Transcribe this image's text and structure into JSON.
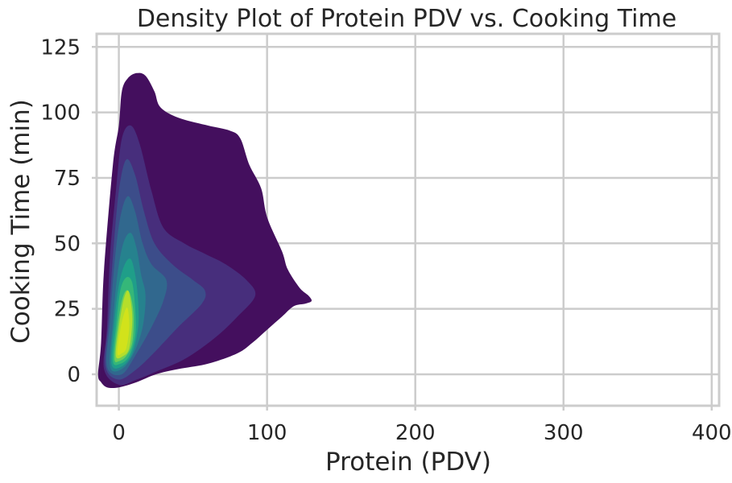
{
  "chart_data": {
    "type": "kde-density-contour",
    "title": "Density Plot of Protein PDV vs. Cooking Time",
    "xlabel": "Protein (PDV)",
    "ylabel": "Cooking Time (min)",
    "xlim": [
      -15,
      405
    ],
    "ylim": [
      -12,
      130
    ],
    "xticks": [
      0,
      100,
      200,
      300,
      400
    ],
    "yticks": [
      0,
      25,
      50,
      75,
      100,
      125
    ],
    "xtick_labels": [
      "0",
      "100",
      "200",
      "300",
      "400"
    ],
    "ytick_labels": [
      "0",
      "25",
      "50",
      "75",
      "100",
      "125"
    ],
    "grid": true,
    "filled": true,
    "colormap": "viridis",
    "levels": [
      {
        "level": 1,
        "color": "#440f5e",
        "polygon": [
          [
            -14,
            0
          ],
          [
            -12,
            12
          ],
          [
            -10,
            40
          ],
          [
            -4,
            80
          ],
          [
            0,
            95
          ],
          [
            2,
            108
          ],
          [
            6,
            113
          ],
          [
            12,
            115
          ],
          [
            18,
            114
          ],
          [
            24,
            108
          ],
          [
            28,
            102
          ],
          [
            40,
            98
          ],
          [
            60,
            95
          ],
          [
            75,
            93
          ],
          [
            82,
            90
          ],
          [
            88,
            80
          ],
          [
            96,
            71
          ],
          [
            100,
            60
          ],
          [
            110,
            47
          ],
          [
            114,
            40
          ],
          [
            122,
            33
          ],
          [
            128,
            30
          ],
          [
            130,
            28
          ],
          [
            126,
            27
          ],
          [
            118,
            26
          ],
          [
            110,
            22
          ],
          [
            100,
            17
          ],
          [
            90,
            12
          ],
          [
            80,
            8
          ],
          [
            60,
            4
          ],
          [
            40,
            2
          ],
          [
            25,
            0
          ],
          [
            12,
            -3
          ],
          [
            0,
            -5
          ],
          [
            -8,
            -5
          ],
          [
            -12,
            -3
          ]
        ]
      },
      {
        "level": 2,
        "color": "#472e7c",
        "polygon": [
          [
            -10,
            2
          ],
          [
            -8,
            18
          ],
          [
            -6,
            45
          ],
          [
            -2,
            70
          ],
          [
            2,
            90
          ],
          [
            8,
            95
          ],
          [
            14,
            88
          ],
          [
            22,
            70
          ],
          [
            30,
            56
          ],
          [
            44,
            50
          ],
          [
            58,
            46
          ],
          [
            72,
            42
          ],
          [
            86,
            36
          ],
          [
            92,
            30
          ],
          [
            80,
            22
          ],
          [
            65,
            14
          ],
          [
            45,
            6
          ],
          [
            25,
            1
          ],
          [
            12,
            -2
          ],
          [
            0,
            -4
          ]
        ]
      },
      {
        "level": 3,
        "color": "#3c4d8a",
        "polygon": [
          [
            -9,
            3
          ],
          [
            -7,
            20
          ],
          [
            -4,
            45
          ],
          [
            0,
            70
          ],
          [
            5,
            82
          ],
          [
            11,
            76
          ],
          [
            17,
            62
          ],
          [
            24,
            50
          ],
          [
            36,
            42
          ],
          [
            50,
            36
          ],
          [
            58,
            32
          ],
          [
            56,
            27
          ],
          [
            40,
            18
          ],
          [
            25,
            9
          ],
          [
            12,
            2
          ],
          [
            0,
            -2
          ]
        ]
      },
      {
        "level": 4,
        "color": "#31688e",
        "polygon": [
          [
            -8,
            3
          ],
          [
            -6,
            20
          ],
          [
            -3,
            42
          ],
          [
            1,
            60
          ],
          [
            6,
            68
          ],
          [
            11,
            62
          ],
          [
            16,
            50
          ],
          [
            22,
            42
          ],
          [
            32,
            36
          ],
          [
            30,
            28
          ],
          [
            22,
            18
          ],
          [
            12,
            8
          ],
          [
            2,
            0
          ]
        ]
      },
      {
        "level": 5,
        "color": "#26828e",
        "polygon": [
          [
            -6,
            3
          ],
          [
            -4,
            20
          ],
          [
            -1,
            38
          ],
          [
            3,
            50
          ],
          [
            8,
            54
          ],
          [
            12,
            48
          ],
          [
            15,
            38
          ],
          [
            18,
            30
          ],
          [
            16,
            18
          ],
          [
            10,
            8
          ],
          [
            2,
            2
          ]
        ]
      },
      {
        "level": 6,
        "color": "#1f9e89",
        "polygon": [
          [
            -5,
            4
          ],
          [
            -3,
            20
          ],
          [
            0,
            34
          ],
          [
            4,
            42
          ],
          [
            8,
            44
          ],
          [
            11,
            38
          ],
          [
            13,
            28
          ],
          [
            13,
            18
          ],
          [
            9,
            8
          ],
          [
            2,
            3
          ]
        ]
      },
      {
        "level": 7,
        "color": "#35b779",
        "polygon": [
          [
            -4,
            5
          ],
          [
            -2,
            18
          ],
          [
            1,
            32
          ],
          [
            5,
            37
          ],
          [
            9,
            35
          ],
          [
            11,
            25
          ],
          [
            11,
            15
          ],
          [
            7,
            7
          ],
          [
            1,
            4
          ]
        ]
      },
      {
        "level": 8,
        "color": "#6ece58",
        "polygon": [
          [
            -3,
            6
          ],
          [
            -1,
            18
          ],
          [
            2,
            28
          ],
          [
            5,
            32
          ],
          [
            8,
            30
          ],
          [
            10,
            22
          ],
          [
            9,
            12
          ],
          [
            5,
            7
          ],
          [
            0,
            5
          ]
        ]
      },
      {
        "level": 9,
        "color": "#b5de2b",
        "polygon": [
          [
            -2,
            7
          ],
          [
            0,
            18
          ],
          [
            3,
            28
          ],
          [
            6,
            32
          ],
          [
            8,
            28
          ],
          [
            9,
            20
          ],
          [
            7,
            10
          ],
          [
            3,
            7
          ]
        ]
      },
      {
        "level": 10,
        "color": "#d2e21b",
        "polygon": [
          [
            -1,
            8
          ],
          [
            1,
            17
          ],
          [
            4,
            24
          ],
          [
            6,
            25
          ],
          [
            7,
            18
          ],
          [
            5,
            10
          ],
          [
            2,
            8
          ]
        ]
      }
    ]
  }
}
